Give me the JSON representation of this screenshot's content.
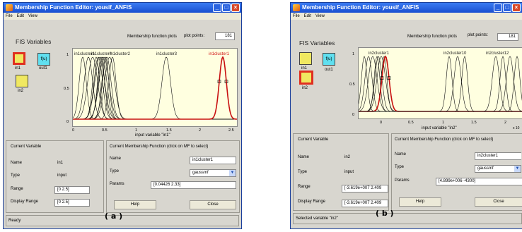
{
  "window_a": {
    "title": "Membership Function Editor: yousif_ANFIS",
    "menu": [
      "File",
      "Edit",
      "View"
    ],
    "fis_variables_label": "FIS Variables",
    "mf_plots_label": "Membership function plots",
    "plot_points_label": "plot points:",
    "plot_points_value": "181",
    "vars": {
      "in1": "in1",
      "out1": "out1",
      "in2": "in2",
      "out_symbol": "f(u)"
    },
    "mf_labels_top": [
      "in1cluster1",
      "in1cluster4",
      "in1cluster2",
      "in1cluster3",
      "in1cluster1"
    ],
    "y_ticks": [
      "1",
      "0.5",
      "0"
    ],
    "x_ticks": [
      "0",
      "0.5",
      "1",
      "1.5",
      "2",
      "2.5"
    ],
    "x_label": "input variable \"in1\"",
    "current_variable": {
      "header": "Current Variable",
      "name_label": "Name",
      "name_value": "in1",
      "type_label": "Type",
      "type_value": "input",
      "range_label": "Range",
      "range_value": "[0 2.5]",
      "display_range_label": "Display Range",
      "display_range_value": "[0 2.5]"
    },
    "current_mf": {
      "header": "Current Membership Function (click on MF to select)",
      "name_label": "Name",
      "name_value": "in1cluster1",
      "type_label": "Type",
      "type_value": "gaussmf",
      "params_label": "Params",
      "params_value": "[0.04426 2.33]"
    },
    "help_button": "Help",
    "close_button": "Close",
    "status": "Ready",
    "subfigure_label": "( a )"
  },
  "window_b": {
    "title": "Membership Function Editor: yousif_ANFIS",
    "menu": [
      "File",
      "Edit",
      "View"
    ],
    "fis_variables_label": "FIS Variables",
    "mf_plots_label": "Membership function plots",
    "plot_points_label": "plot points:",
    "plot_points_value": "181",
    "vars": {
      "in1": "in1",
      "out1": "out1",
      "in2": "in2",
      "out_symbol": "f(u)"
    },
    "mf_labels_top": [
      "in2cluster1",
      "in2cluster10",
      "in2cluster12"
    ],
    "y_ticks": [
      "1",
      "0.5",
      "0"
    ],
    "x_ticks": [
      "0",
      "0.5",
      "1",
      "1.5",
      "2"
    ],
    "x_label": "input variable \"in2\"",
    "x_exponent": "x 10",
    "current_variable": {
      "header": "Current Variable",
      "name_label": "Name",
      "name_value": "in2",
      "type_label": "Type",
      "type_value": "input",
      "range_label": "Range",
      "range_value": "[-3.619e+007 2.409",
      "display_range_label": "Display Range",
      "display_range_value": "[-3.619e+007 2.409"
    },
    "current_mf": {
      "header": "Current Membership Function (click on MF to select)",
      "name_label": "Name",
      "name_value": "in2cluster1",
      "type_label": "Type",
      "type_value": "gaussmf",
      "params_label": "Params",
      "params_value": "[4.899e+006 -4300]"
    },
    "help_button": "Help",
    "close_button": "Close",
    "status": "Selected variable \"in2\"",
    "subfigure_label": "( b )"
  },
  "colors": {
    "title_blue": "#1a4fd0",
    "plot_bg": "#ffffe0",
    "selected_mf": "#c81010",
    "input_var": "#f0e860",
    "output_var": "#60e0f0"
  }
}
